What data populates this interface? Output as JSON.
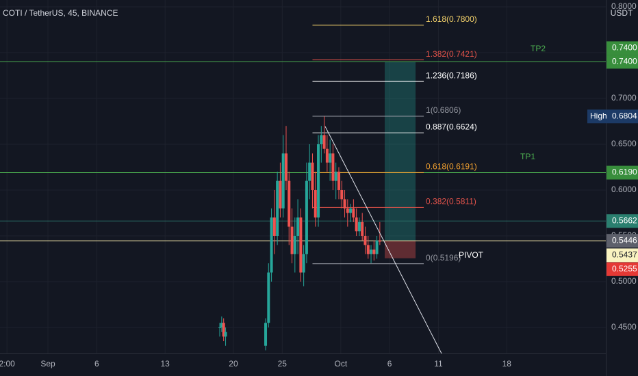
{
  "chart_data": {
    "type": "candlestick",
    "title": "COTI / TetherUS, 45, BINANCE",
    "axis_unit": "USDT",
    "up_color": "#26a69a",
    "down_color": "#ef5350",
    "grid": true,
    "candles": {
      "x": [
        17.6,
        17.8,
        18.0,
        18.2,
        22.3,
        22.6,
        22.9,
        23.2,
        23.5,
        23.8,
        24.1,
        24.4,
        24.7,
        25.0,
        25.3,
        25.6,
        25.9,
        26.2,
        26.5,
        26.8,
        27.1,
        27.4,
        27.7,
        28.0,
        28.3,
        28.6,
        28.9,
        29.2,
        29.5,
        29.8,
        30.1,
        30.4,
        30.7,
        31.0,
        31.3,
        31.6,
        31.9,
        32.2,
        32.5,
        32.8,
        33.1,
        33.4,
        33.7,
        34.0
      ],
      "open": [
        0.45,
        0.45,
        0.455,
        0.44,
        0.43,
        0.455,
        0.51,
        0.57,
        0.55,
        0.61,
        0.58,
        0.64,
        0.61,
        0.56,
        0.53,
        0.55,
        0.57,
        0.51,
        0.53,
        0.61,
        0.63,
        0.6,
        0.57,
        0.65,
        0.66,
        0.645,
        0.63,
        0.64,
        0.61,
        0.62,
        0.6,
        0.59,
        0.58,
        0.575,
        0.58,
        0.57,
        0.555,
        0.565,
        0.55,
        0.54,
        0.53,
        0.535,
        0.53,
        0.545
      ],
      "high": [
        0.455,
        0.462,
        0.46,
        0.45,
        0.46,
        0.52,
        0.58,
        0.6,
        0.62,
        0.63,
        0.66,
        0.67,
        0.62,
        0.58,
        0.57,
        0.59,
        0.58,
        0.54,
        0.63,
        0.65,
        0.64,
        0.62,
        0.66,
        0.67,
        0.6804,
        0.66,
        0.655,
        0.65,
        0.63,
        0.625,
        0.61,
        0.6,
        0.59,
        0.585,
        0.59,
        0.58,
        0.57,
        0.575,
        0.56,
        0.55,
        0.54,
        0.545,
        0.55,
        0.565
      ],
      "low": [
        0.44,
        0.445,
        0.435,
        0.43,
        0.425,
        0.45,
        0.5,
        0.53,
        0.54,
        0.57,
        0.57,
        0.6,
        0.54,
        0.52,
        0.51,
        0.53,
        0.5,
        0.495,
        0.52,
        0.59,
        0.58,
        0.56,
        0.56,
        0.63,
        0.64,
        0.62,
        0.61,
        0.6,
        0.59,
        0.59,
        0.58,
        0.57,
        0.56,
        0.565,
        0.565,
        0.55,
        0.55,
        0.545,
        0.53,
        0.525,
        0.52,
        0.523,
        0.525,
        0.54
      ],
      "close": [
        0.45,
        0.455,
        0.44,
        0.445,
        0.455,
        0.51,
        0.57,
        0.55,
        0.61,
        0.58,
        0.64,
        0.61,
        0.56,
        0.53,
        0.55,
        0.57,
        0.51,
        0.53,
        0.61,
        0.63,
        0.6,
        0.57,
        0.65,
        0.66,
        0.645,
        0.63,
        0.64,
        0.61,
        0.62,
        0.6,
        0.59,
        0.58,
        0.575,
        0.58,
        0.57,
        0.555,
        0.565,
        0.55,
        0.54,
        0.53,
        0.535,
        0.53,
        0.545,
        0.5437
      ]
    },
    "ylim": [
      0.4216,
      0.8075
    ],
    "yticks": [
      {
        "value": 0.45,
        "label": "0.4500"
      },
      {
        "value": 0.5,
        "label": "0.5000"
      },
      {
        "value": 0.55,
        "label": "0.5500"
      },
      {
        "value": 0.6,
        "label": "0.6000"
      },
      {
        "value": 0.65,
        "label": "0.6500"
      },
      {
        "value": 0.7,
        "label": "0.7000"
      },
      {
        "value": 0.75,
        "label": "0.7500"
      },
      {
        "value": 0.8,
        "label": "0.8000"
      }
    ],
    "xlim": [
      -4.91,
      57.15
    ],
    "xticks": [
      {
        "value": -4.2,
        "label": "2:00"
      },
      {
        "value": 0,
        "label": "Sep"
      },
      {
        "value": 5,
        "label": "6"
      },
      {
        "value": 12,
        "label": "13"
      },
      {
        "value": 19,
        "label": "20"
      },
      {
        "value": 24,
        "label": "25"
      },
      {
        "value": 30,
        "label": "Oct"
      },
      {
        "value": 35,
        "label": "6"
      },
      {
        "value": 40,
        "label": "11"
      },
      {
        "value": 47,
        "label": "18"
      }
    ],
    "fib_x_range": [
      27.1,
      38.5
    ],
    "fib_levels": [
      {
        "label": "1.618(0.7800)",
        "value": 0.78,
        "color": "#f5d36b"
      },
      {
        "label": "1.382(0.7421)",
        "value": 0.7421,
        "color": "#e0524a"
      },
      {
        "label": "1.236(0.7186)",
        "value": 0.7186,
        "color": "#ffffff"
      },
      {
        "label": "1(0.6806)",
        "value": 0.6806,
        "color": "#9598a1"
      },
      {
        "label": "0.887(0.6624)",
        "value": 0.6624,
        "color": "#ffffff"
      },
      {
        "label": "0.618(0.6191)",
        "value": 0.6191,
        "color": "#f0a030"
      },
      {
        "label": "0.382(0.5811)",
        "value": 0.5811,
        "color": "#e0524a"
      },
      {
        "label": "0(0.5196)",
        "value": 0.5196,
        "color": "#9598a1"
      }
    ],
    "hlines": [
      {
        "value": 0.74,
        "color": "#4caf50"
      },
      {
        "value": 0.619,
        "color": "#4caf50"
      },
      {
        "value": 0.5662,
        "color": "#2a6f66"
      },
      {
        "value": 0.5446,
        "color": "#fff3b0"
      }
    ],
    "annotations": [
      "TP2",
      "TP1",
      "PIVOT"
    ],
    "position": {
      "x": [
        34.5,
        37.66
      ],
      "target": 0.74,
      "entry": 0.5446,
      "stop": 0.5255
    },
    "trendline": {
      "x": [
        28.4,
        40.32
      ],
      "y": [
        0.6694,
        0.4216
      ]
    },
    "price_labels": [
      {
        "label": "0.7400",
        "value": 0.74,
        "color": "#388e3c"
      },
      {
        "label": "0.7400",
        "value": 0.74,
        "color": "#388e3c"
      },
      {
        "tag": "High",
        "label": "0.6804",
        "value": 0.6804,
        "color": "#1c3a66"
      },
      {
        "label": "0.6190",
        "value": 0.619,
        "color": "#388e3c"
      },
      {
        "label": "0.5662",
        "value": 0.5662,
        "color": "#2a7f6f"
      },
      {
        "label": "0.5446",
        "value": 0.5446,
        "color": "#5d606b"
      },
      {
        "label": "0.5437",
        "value": 0.5437,
        "color": "#f9f3c0"
      },
      {
        "label": "0.5255",
        "value": 0.5255,
        "color": "#e53935"
      }
    ]
  }
}
